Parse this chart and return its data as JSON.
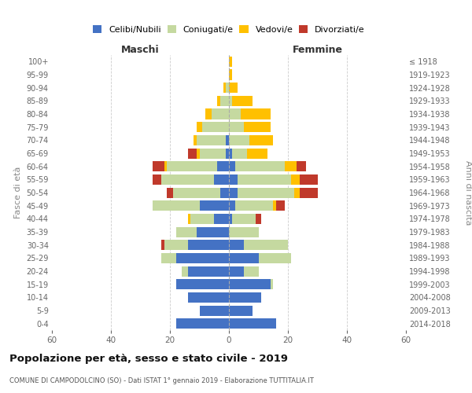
{
  "age_groups": [
    "0-4",
    "5-9",
    "10-14",
    "15-19",
    "20-24",
    "25-29",
    "30-34",
    "35-39",
    "40-44",
    "45-49",
    "50-54",
    "55-59",
    "60-64",
    "65-69",
    "70-74",
    "75-79",
    "80-84",
    "85-89",
    "90-94",
    "95-99",
    "100+"
  ],
  "birth_years": [
    "2014-2018",
    "2009-2013",
    "2004-2008",
    "1999-2003",
    "1994-1998",
    "1989-1993",
    "1984-1988",
    "1979-1983",
    "1974-1978",
    "1969-1973",
    "1964-1968",
    "1959-1963",
    "1954-1958",
    "1949-1953",
    "1944-1948",
    "1939-1943",
    "1934-1938",
    "1929-1933",
    "1924-1928",
    "1919-1923",
    "≤ 1918"
  ],
  "maschi": {
    "celibi": [
      18,
      10,
      14,
      18,
      14,
      18,
      14,
      11,
      5,
      10,
      3,
      5,
      4,
      1,
      1,
      0,
      0,
      0,
      0,
      0,
      0
    ],
    "coniugati": [
      0,
      0,
      0,
      0,
      2,
      5,
      8,
      7,
      8,
      16,
      16,
      18,
      17,
      9,
      10,
      9,
      6,
      3,
      1,
      0,
      0
    ],
    "vedovi": [
      0,
      0,
      0,
      0,
      0,
      0,
      0,
      0,
      1,
      0,
      0,
      0,
      1,
      1,
      1,
      2,
      2,
      1,
      1,
      0,
      0
    ],
    "divorziati": [
      0,
      0,
      0,
      0,
      0,
      0,
      1,
      0,
      0,
      0,
      2,
      3,
      4,
      3,
      0,
      0,
      0,
      0,
      0,
      0,
      0
    ]
  },
  "femmine": {
    "nubili": [
      16,
      8,
      11,
      14,
      5,
      10,
      5,
      0,
      1,
      2,
      3,
      3,
      2,
      1,
      0,
      0,
      0,
      0,
      0,
      0,
      0
    ],
    "coniugate": [
      0,
      0,
      0,
      1,
      5,
      11,
      15,
      10,
      8,
      13,
      19,
      18,
      17,
      5,
      7,
      5,
      4,
      1,
      0,
      0,
      0
    ],
    "vedove": [
      0,
      0,
      0,
      0,
      0,
      0,
      0,
      0,
      0,
      1,
      2,
      3,
      4,
      7,
      8,
      9,
      10,
      7,
      3,
      1,
      1
    ],
    "divorziate": [
      0,
      0,
      0,
      0,
      0,
      0,
      0,
      0,
      2,
      3,
      6,
      6,
      3,
      0,
      0,
      0,
      0,
      0,
      0,
      0,
      0
    ]
  },
  "colors": {
    "celibi_nubili": "#4472c4",
    "coniugati": "#c5d9a0",
    "vedovi": "#ffc000",
    "divorziati": "#c0392b"
  },
  "legend_labels": [
    "Celibi/Nubili",
    "Coniugati/e",
    "Vedovi/e",
    "Divorziati/e"
  ],
  "title": "Popolazione per età, sesso e stato civile - 2019",
  "subtitle": "COMUNE DI CAMPODOLCINO (SO) - Dati ISTAT 1° gennaio 2019 - Elaborazione TUTTITALIA.IT",
  "xlabel_left": "Maschi",
  "xlabel_right": "Femmine",
  "ylabel_left": "Fasce di età",
  "ylabel_right": "Anni di nascita",
  "xlim": 60,
  "bg_color": "#ffffff",
  "grid_color": "#cccccc"
}
